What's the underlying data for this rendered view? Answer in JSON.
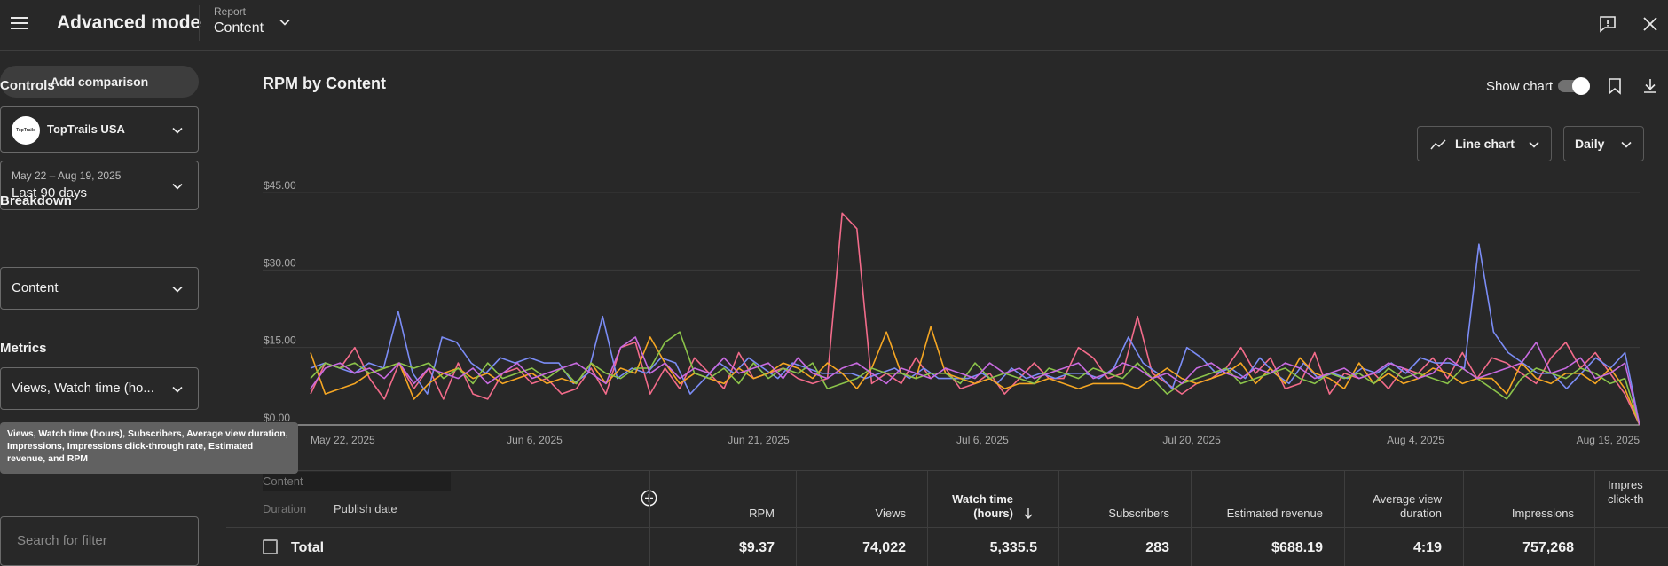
{
  "header": {
    "title": "Advanced mode",
    "report_label": "Report",
    "report_value": "Content"
  },
  "sidebar": {
    "add_comparison": "Add comparison",
    "controls_label": "Controls",
    "channel_name": "TopTrails USA",
    "channel_avatar_text": "TopTrails",
    "date_range_sub": "May 22 – Aug 19, 2025",
    "date_range_value": "Last 90 days",
    "breakdown_label": "Breakdown",
    "breakdown_value": "Content",
    "metrics_label": "Metrics",
    "metrics_value": "Views, Watch time (ho...",
    "metrics_tooltip": "Views, Watch time (hours), Subscribers, Average view duration, Impressions, Impressions click-through rate, Estimated revenue, and RPM",
    "search_placeholder": "Search for filter"
  },
  "chart_controls": {
    "title": "RPM by Content",
    "show_chart_label": "Show chart",
    "chart_type": "Line chart",
    "interval": "Daily"
  },
  "chart_data": {
    "type": "line",
    "title": "RPM by Content",
    "xlabel": "",
    "ylabel": "",
    "ylim": [
      0,
      45
    ],
    "y_ticks": [
      "$0.00",
      "$15.00",
      "$30.00",
      "$45.00"
    ],
    "x_ticks": [
      "May 22, 2025",
      "Jun 6, 2025",
      "Jun 21, 2025",
      "Jul 6, 2025",
      "Jul 20, 2025",
      "Aug 4, 2025",
      "Aug 19, 2025"
    ],
    "x_start": "2025-05-22",
    "x_end": "2025-08-19",
    "grid": true,
    "series": [
      {
        "color": "#f26b8a",
        "values": [
          6,
          12,
          11,
          15,
          9,
          5,
          12,
          7,
          11,
          5,
          12,
          6,
          5,
          10,
          11,
          8,
          9,
          6,
          7,
          11,
          6,
          15,
          16,
          6,
          11,
          7,
          13,
          10,
          7,
          14,
          9,
          10,
          11,
          9,
          8,
          9,
          41,
          38,
          8,
          10,
          8,
          13,
          9,
          11,
          7,
          8,
          10,
          6,
          9,
          12,
          9,
          9,
          15,
          13,
          9,
          10,
          21,
          10,
          8,
          6,
          8,
          9,
          11,
          15,
          10,
          13,
          7,
          8,
          14,
          6,
          10,
          9,
          10,
          7,
          11,
          10,
          13,
          9,
          14,
          9,
          13,
          12,
          10,
          8,
          13,
          16,
          11,
          14,
          10,
          6,
          0
        ]
      },
      {
        "color": "#7b8cf5",
        "values": [
          11,
          12,
          11,
          10,
          12,
          11,
          22,
          10,
          6,
          17,
          16,
          12,
          10,
          13,
          12,
          13,
          12,
          12,
          8,
          10,
          21,
          9,
          11,
          10,
          13,
          12,
          6,
          9,
          12,
          10,
          13,
          11,
          9,
          12,
          11,
          10,
          10,
          10,
          9,
          10,
          11,
          9,
          11,
          9,
          9,
          9,
          10,
          8,
          11,
          9,
          10,
          9,
          10,
          10,
          9,
          11,
          17,
          12,
          10,
          7,
          15,
          13,
          10,
          11,
          9,
          13,
          10,
          8,
          12,
          9,
          10,
          9,
          11,
          10,
          12,
          10,
          13,
          12,
          12,
          11,
          35,
          18,
          14,
          12,
          10,
          10,
          7,
          10,
          13,
          11,
          14,
          0
        ]
      },
      {
        "color": "#f5a623",
        "values": [
          14,
          6,
          7,
          8,
          10,
          11,
          12,
          5,
          8,
          10,
          11,
          9,
          10,
          8,
          9,
          10,
          8,
          9,
          8,
          12,
          8,
          11,
          10,
          17,
          12,
          8,
          10,
          9,
          8,
          11,
          9,
          10,
          12,
          11,
          9,
          12,
          10,
          7,
          11,
          18,
          10,
          9,
          19,
          10,
          9,
          8,
          9,
          7,
          8,
          8,
          9,
          8,
          7,
          8,
          8,
          8,
          7,
          9,
          11,
          9,
          8,
          9,
          10,
          12,
          8,
          11,
          8,
          13,
          10,
          9,
          7,
          12,
          8,
          10,
          8,
          9,
          11,
          10,
          8,
          9,
          9,
          6,
          12,
          9,
          8,
          10,
          10,
          8,
          11,
          7,
          0
        ]
      },
      {
        "color": "#8bc34a",
        "values": [
          9,
          12,
          11,
          12,
          10,
          11,
          12,
          11,
          12,
          9,
          11,
          8,
          12,
          9,
          10,
          11,
          9,
          11,
          8,
          12,
          10,
          9,
          11,
          11,
          16,
          18,
          10,
          9,
          11,
          8,
          12,
          9,
          11,
          10,
          12,
          7,
          8,
          9,
          11,
          10,
          10,
          9,
          10,
          10,
          8,
          12,
          9,
          10,
          9,
          8,
          11,
          10,
          9,
          11,
          10,
          9,
          12,
          9,
          6,
          8,
          9,
          10,
          11,
          8,
          9,
          10,
          11,
          9,
          8,
          10,
          9,
          10,
          8,
          11,
          9,
          10,
          9,
          8,
          11,
          9,
          7,
          5,
          9,
          11,
          10,
          9,
          11,
          10,
          8,
          9,
          0
        ]
      },
      {
        "color": "#c86be0",
        "values": [
          7,
          11,
          12,
          10,
          11,
          9,
          12,
          8,
          11,
          10,
          9,
          11,
          8,
          10,
          12,
          9,
          10,
          11,
          12,
          10,
          8,
          15,
          17,
          10,
          12,
          9,
          11,
          10,
          13,
          10,
          11,
          12,
          9,
          13,
          10,
          9,
          11,
          12,
          10,
          8,
          11,
          10,
          9,
          11,
          10,
          9,
          12,
          10,
          11,
          9,
          10,
          11,
          12,
          9,
          10,
          12,
          11,
          9,
          10,
          8,
          11,
          12,
          10,
          9,
          11,
          10,
          12,
          11,
          9,
          10,
          11,
          9,
          10,
          12,
          11,
          9,
          10,
          13,
          11,
          9,
          10,
          11,
          12,
          16,
          10,
          11,
          13,
          9,
          10,
          12,
          0
        ]
      }
    ]
  },
  "table": {
    "content_header": "Content",
    "duration_header": "Duration",
    "publish_date_header": "Publish date",
    "columns": [
      {
        "label": "RPM"
      },
      {
        "label": "Views"
      },
      {
        "label": "Watch time\n(hours)"
      },
      {
        "label": "Subscribers"
      },
      {
        "label": "Estimated revenue"
      },
      {
        "label": "Average view\nduration"
      },
      {
        "label": "Impressions"
      },
      {
        "label": "Impres\nclick-th"
      }
    ],
    "total": {
      "label": "Total",
      "values": [
        "$9.37",
        "74,022",
        "5,335.5",
        "283",
        "$688.19",
        "4:19",
        "757,268",
        ""
      ]
    }
  },
  "colors": {
    "background": "#282828",
    "gridline": "#3a3a3a"
  }
}
